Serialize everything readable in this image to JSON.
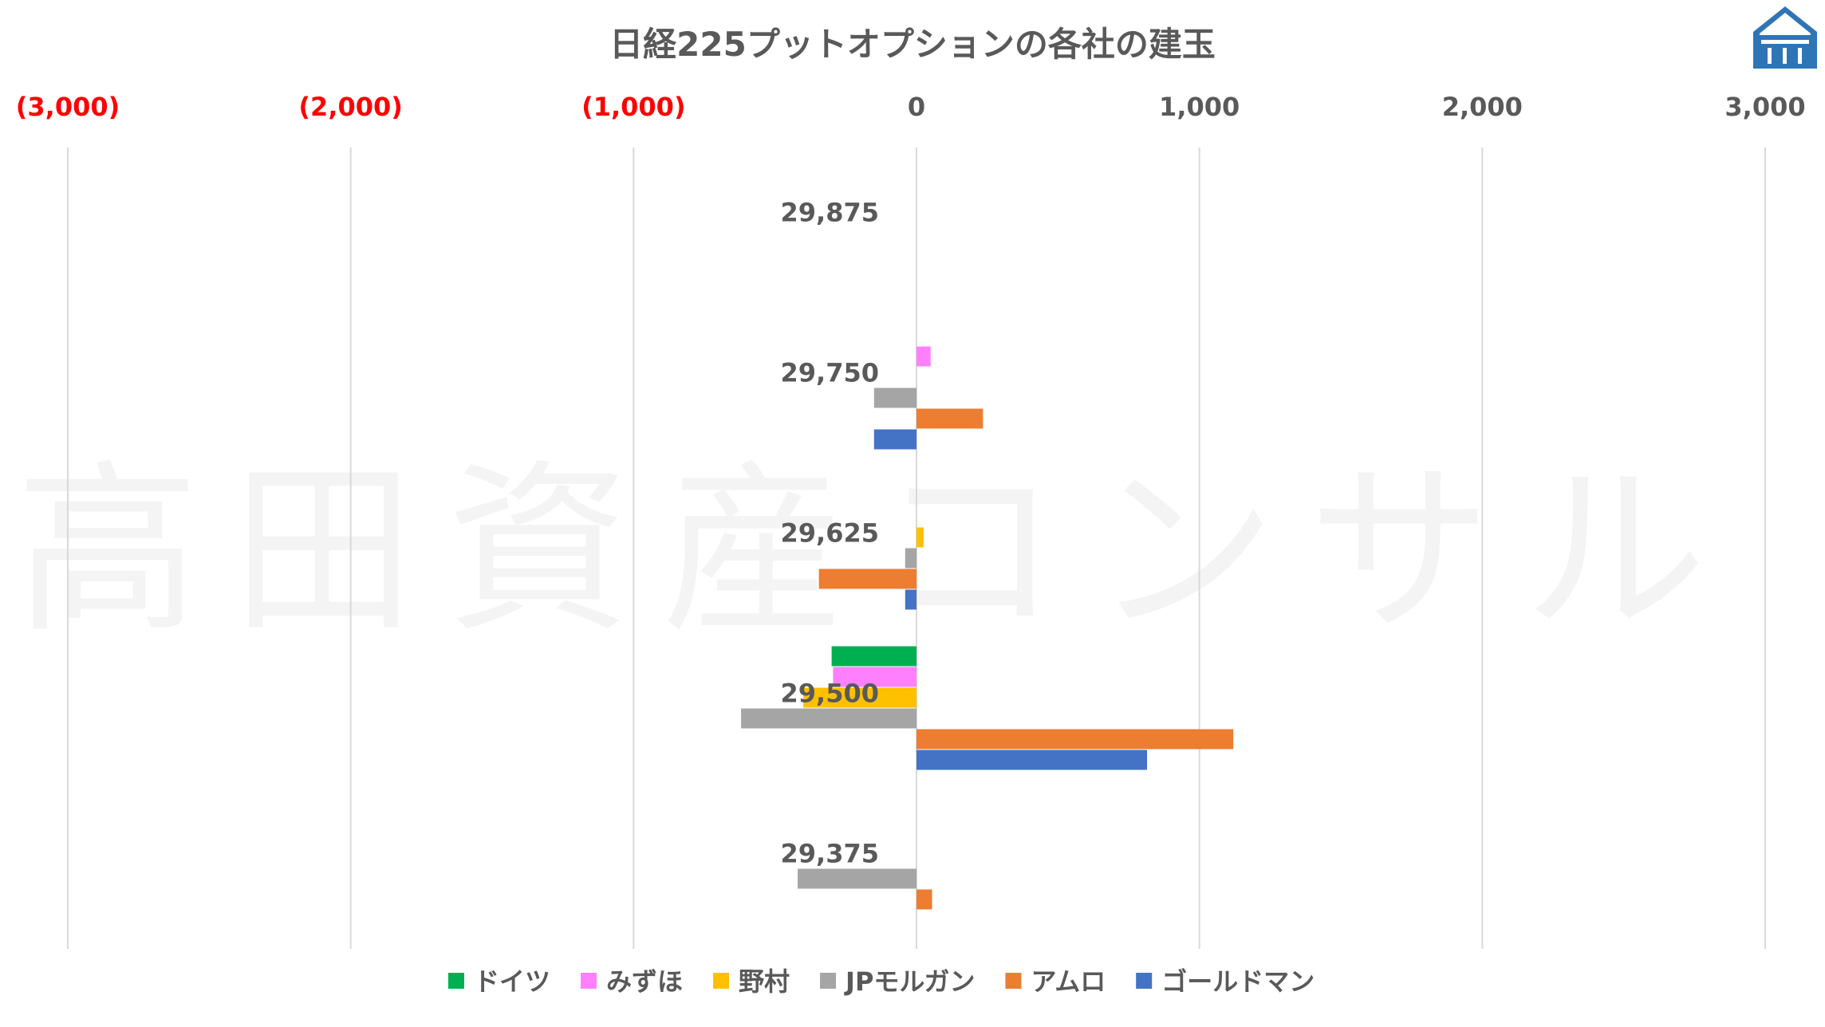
{
  "watermark": "高田資産コンサル",
  "logo": {
    "icon": "house-logo-icon",
    "color": "#2e75b6"
  },
  "chart_data": {
    "type": "bar",
    "orientation": "horizontal",
    "title": "日経225プットオプションの各社の建玉",
    "categories": [
      "29,875",
      "29,750",
      "29,625",
      "29,500",
      "29,375"
    ],
    "xlim": [
      -3000,
      3000
    ],
    "xticks": [
      {
        "value": -3000,
        "label": "(3,000)",
        "color": "#ff0000"
      },
      {
        "value": -2000,
        "label": "(2,000)",
        "color": "#ff0000"
      },
      {
        "value": -1000,
        "label": "(1,000)",
        "color": "#ff0000"
      },
      {
        "value": 0,
        "label": "0",
        "color": "#595959"
      },
      {
        "value": 1000,
        "label": "1,000",
        "color": "#595959"
      },
      {
        "value": 2000,
        "label": "2,000",
        "color": "#595959"
      },
      {
        "value": 3000,
        "label": "3,000",
        "color": "#595959"
      }
    ],
    "grid": true,
    "legend_position": "bottom",
    "series": [
      {
        "name": "ドイツ",
        "color": "#00b050",
        "values": [
          0,
          0,
          0,
          -300,
          0
        ]
      },
      {
        "name": "みずほ",
        "color": "#ff80ff",
        "values": [
          0,
          50,
          0,
          -295,
          0
        ]
      },
      {
        "name": "野村",
        "color": "#ffc000",
        "values": [
          0,
          0,
          25,
          -400,
          0
        ]
      },
      {
        "name": "JPモルガン",
        "color": "#a5a5a5",
        "values": [
          0,
          -150,
          -40,
          -620,
          -420
        ]
      },
      {
        "name": "アムロ",
        "color": "#ed7d31",
        "values": [
          0,
          235,
          -345,
          1120,
          55
        ]
      },
      {
        "name": "ゴールドマン",
        "color": "#4472c4",
        "values": [
          0,
          -150,
          -40,
          815,
          0
        ]
      }
    ]
  }
}
